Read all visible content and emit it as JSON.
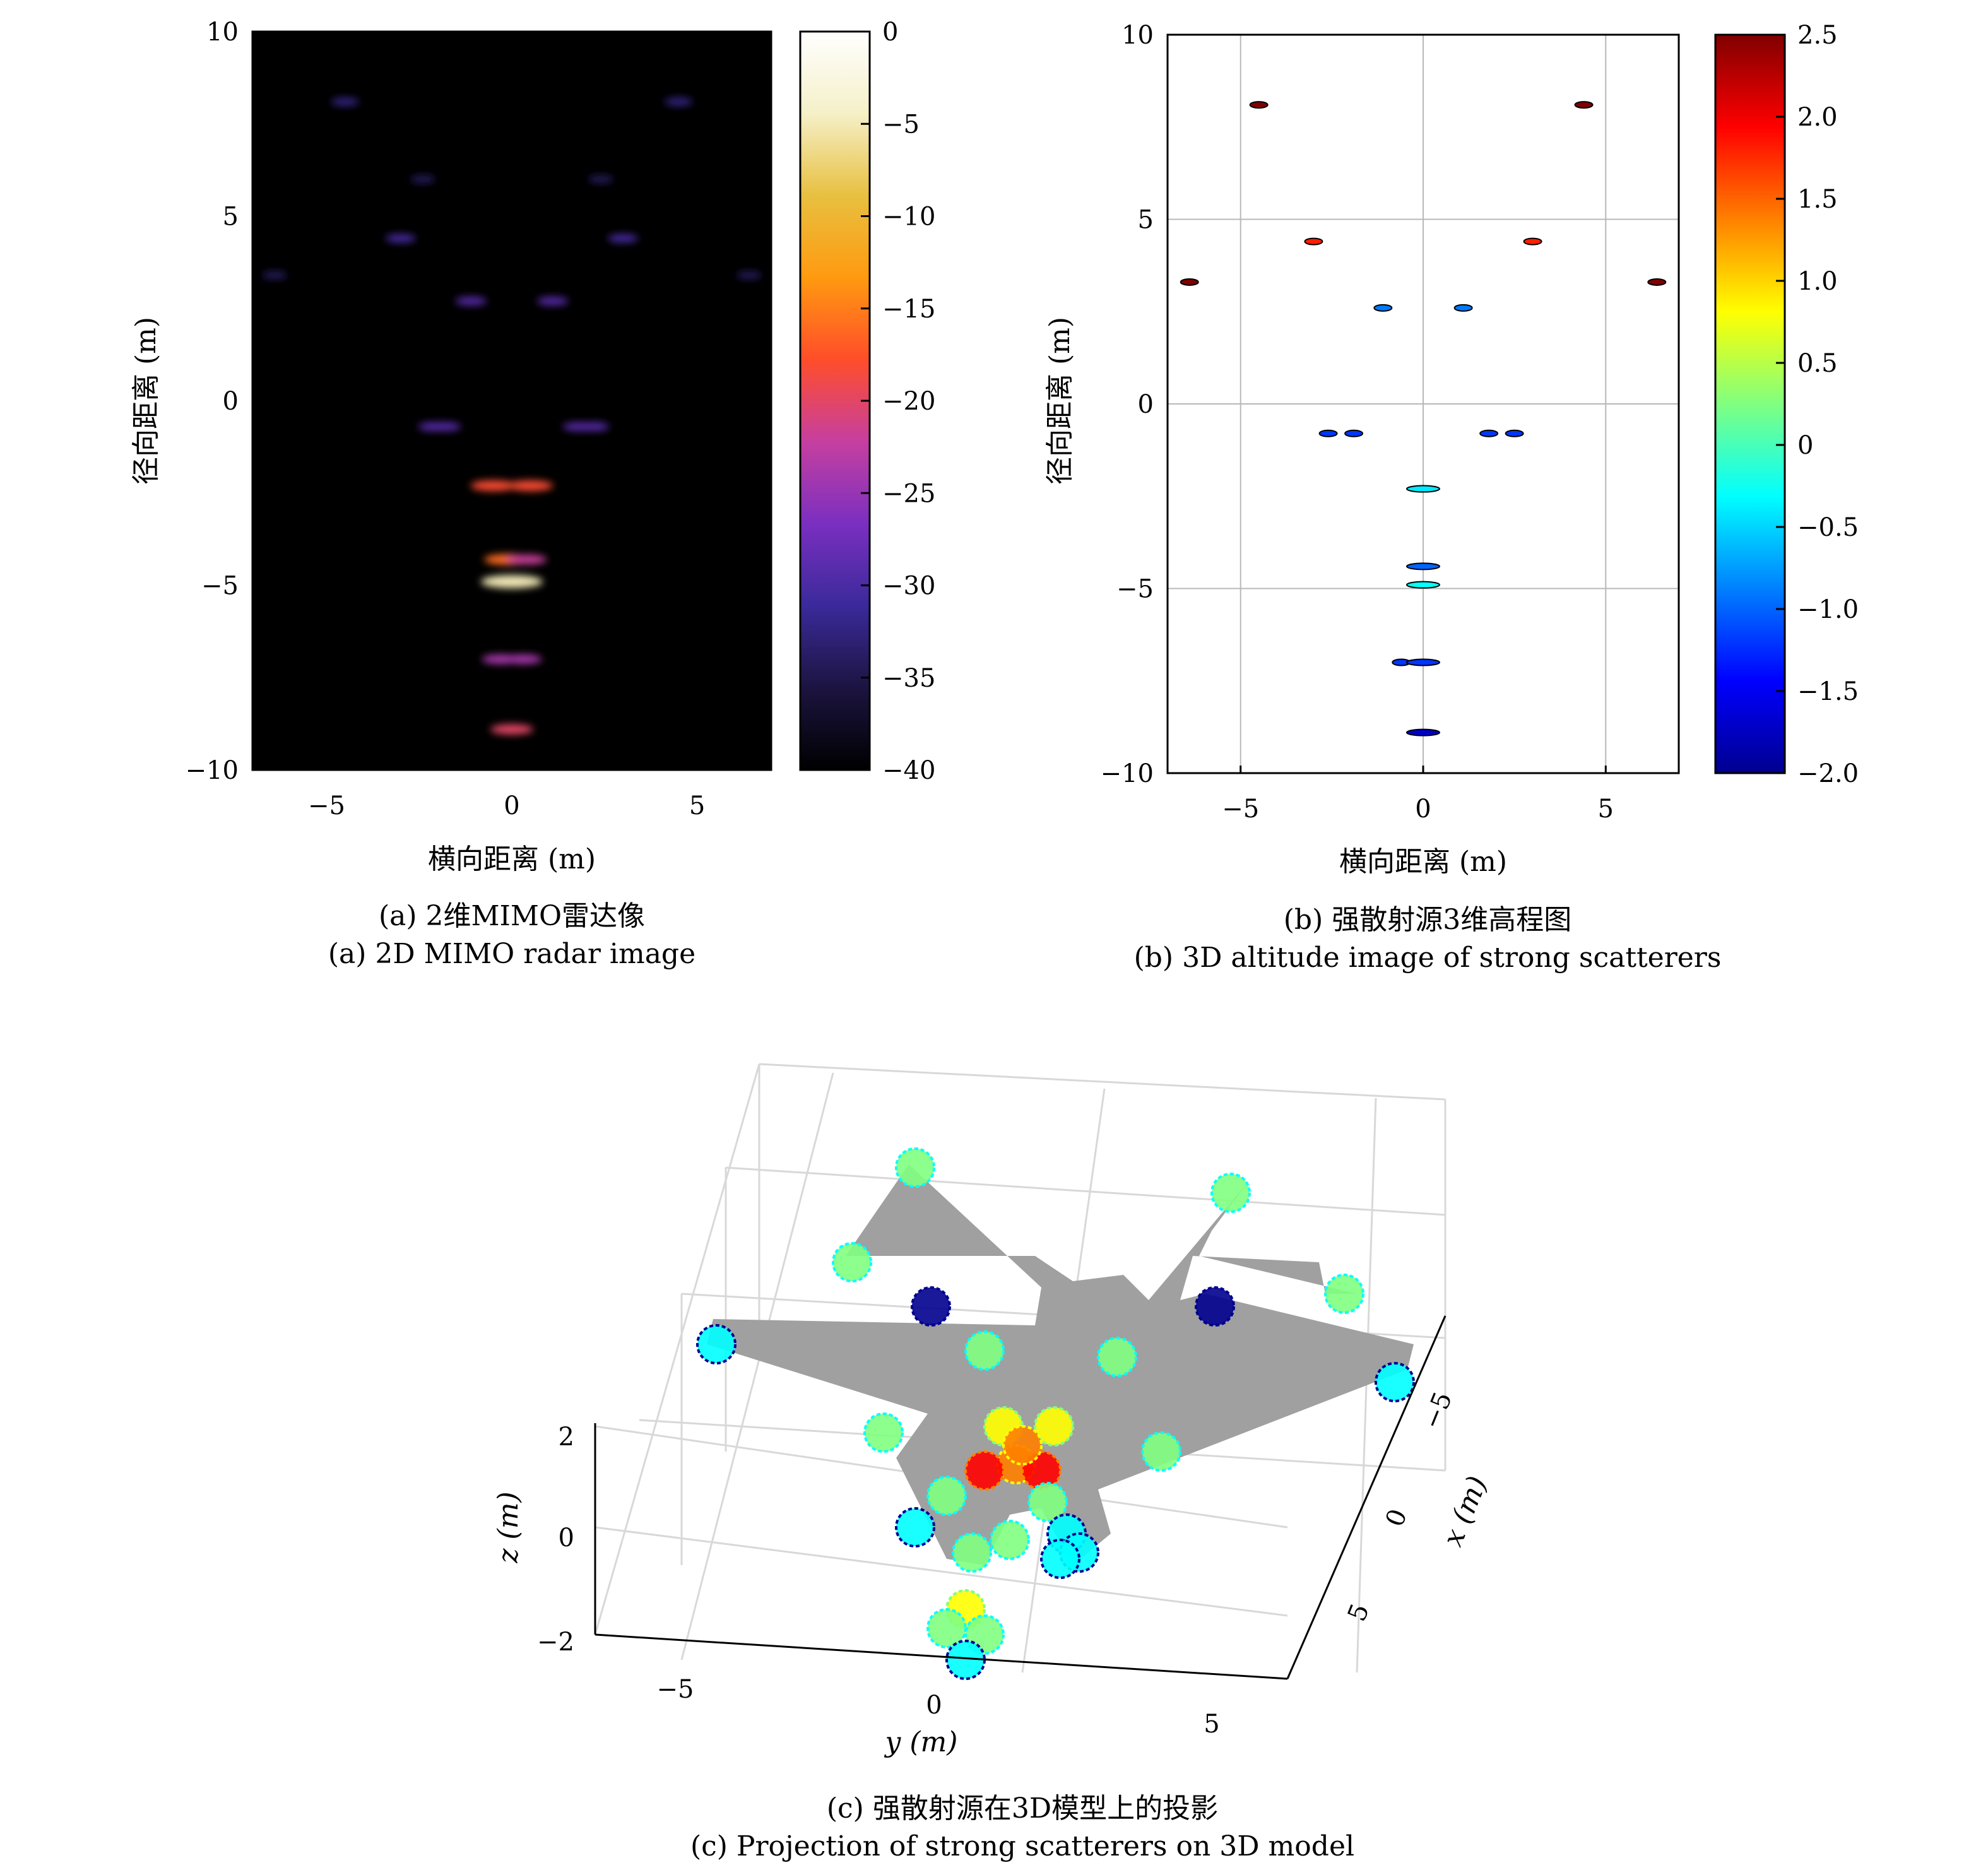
{
  "figure": {
    "panel_a": {
      "caption_cn": "(a) 2维MIMO雷达像",
      "caption_en": "(a) 2D MIMO radar image"
    },
    "panel_b": {
      "caption_cn": "(b) 强散射源3维高程图",
      "caption_en": "(b) 3D altitude image of strong scatterers"
    },
    "panel_c": {
      "caption_cn": "(c) 强散射源在3D模型上的投影",
      "caption_en": "(c) Projection of strong scatterers on 3D model"
    }
  },
  "chart_data": [
    {
      "type": "heatmap",
      "panel": "a",
      "xlabel": "横向距离 (m)",
      "ylabel": "径向距离 (m)",
      "xlim": [
        -7,
        7
      ],
      "ylim": [
        -10,
        10
      ],
      "xticks": [
        "−5",
        "0",
        "5"
      ],
      "xtick_values": [
        -5,
        0,
        5
      ],
      "yticks": [
        "10",
        "5",
        "0",
        "−5",
        "−10"
      ],
      "ytick_values": [
        10,
        5,
        0,
        -5,
        -10
      ],
      "colorbar": {
        "range": [
          -40,
          0
        ],
        "ticks": [
          "0",
          "−5",
          "−10",
          "−15",
          "−20",
          "−25",
          "−30",
          "−35",
          "−40"
        ],
        "tick_values": [
          0,
          -5,
          -10,
          -15,
          -20,
          -25,
          -30,
          -35,
          -40
        ],
        "colormap": [
          "#000000",
          "#1c1440",
          "#3a2a9a",
          "#7a2fc0",
          "#c63fa0",
          "#ff4d2a",
          "#ff9a10",
          "#e8c040",
          "#f5f0c8",
          "#ffffff"
        ]
      },
      "scatterers": [
        {
          "x": -4.5,
          "y": 8.1,
          "level": -32
        },
        {
          "x": 4.5,
          "y": 8.1,
          "level": -32
        },
        {
          "x": -2.4,
          "y": 6.0,
          "level": -34
        },
        {
          "x": 2.4,
          "y": 6.0,
          "level": -34
        },
        {
          "x": -3.0,
          "y": 4.4,
          "level": -30
        },
        {
          "x": 3.0,
          "y": 4.4,
          "level": -30
        },
        {
          "x": -6.4,
          "y": 3.4,
          "level": -34
        },
        {
          "x": 6.4,
          "y": 3.4,
          "level": -34
        },
        {
          "x": -1.1,
          "y": 2.7,
          "level": -29
        },
        {
          "x": 1.1,
          "y": 2.7,
          "level": -29
        },
        {
          "x": -2.1,
          "y": -0.7,
          "level": -29
        },
        {
          "x": -1.8,
          "y": -0.7,
          "level": -29
        },
        {
          "x": 1.8,
          "y": -0.7,
          "level": -29
        },
        {
          "x": 2.2,
          "y": -0.7,
          "level": -29
        },
        {
          "x": -0.5,
          "y": -2.3,
          "level": -18
        },
        {
          "x": 0.5,
          "y": -2.3,
          "level": -18
        },
        {
          "x": -0.1,
          "y": -4.3,
          "level": -16
        },
        {
          "x": 0.4,
          "y": -4.3,
          "level": -22
        },
        {
          "x": 0.0,
          "y": -4.9,
          "level": -5
        },
        {
          "x": -0.3,
          "y": -7.0,
          "level": -24
        },
        {
          "x": 0.3,
          "y": -7.0,
          "level": -24
        },
        {
          "x": 0.0,
          "y": -8.9,
          "level": -20
        }
      ]
    },
    {
      "type": "scatter",
      "panel": "b",
      "xlabel": "横向距离 (m)",
      "ylabel": "径向距离 (m)",
      "xlim": [
        -7,
        7
      ],
      "ylim": [
        -10,
        10
      ],
      "grid": true,
      "xticks": [
        "−5",
        "0",
        "5"
      ],
      "xtick_values": [
        -5,
        0,
        5
      ],
      "yticks": [
        "10",
        "5",
        "0",
        "−5",
        "−10"
      ],
      "ytick_values": [
        10,
        5,
        0,
        -5,
        -10
      ],
      "colorbar": {
        "range": [
          -2.0,
          2.5
        ],
        "ticks": [
          "2.5",
          "2.0",
          "1.5",
          "1.0",
          "0.5",
          "0",
          "−0.5",
          "−1.0",
          "−1.5",
          "−2.0"
        ],
        "tick_values": [
          2.5,
          2.0,
          1.5,
          1.0,
          0.5,
          0,
          -0.5,
          -1.0,
          -1.5,
          -2.0
        ],
        "colormap": [
          "#00008f",
          "#0000ff",
          "#0080ff",
          "#00ffff",
          "#80ff80",
          "#ffff00",
          "#ff8000",
          "#ff0000",
          "#800000"
        ]
      },
      "points": [
        {
          "x": -4.5,
          "y": 8.1,
          "z": 2.5
        },
        {
          "x": 4.4,
          "y": 8.1,
          "z": 2.5
        },
        {
          "x": -3.0,
          "y": 4.4,
          "z": 1.8
        },
        {
          "x": 3.0,
          "y": 4.4,
          "z": 1.8
        },
        {
          "x": -6.4,
          "y": 3.3,
          "z": 2.5
        },
        {
          "x": 6.4,
          "y": 3.3,
          "z": 2.5
        },
        {
          "x": -1.1,
          "y": 2.6,
          "z": -0.9
        },
        {
          "x": 1.1,
          "y": 2.6,
          "z": -0.9
        },
        {
          "x": -2.6,
          "y": -0.8,
          "z": -1.2
        },
        {
          "x": -1.9,
          "y": -0.8,
          "z": -1.2
        },
        {
          "x": 1.8,
          "y": -0.8,
          "z": -1.2
        },
        {
          "x": 2.5,
          "y": -0.8,
          "z": -1.2
        },
        {
          "x": 0.0,
          "y": -2.3,
          "z": -0.4
        },
        {
          "x": 0.0,
          "y": -4.4,
          "z": -1.0
        },
        {
          "x": 0.0,
          "y": -4.9,
          "z": -0.3
        },
        {
          "x": -0.6,
          "y": -7.0,
          "z": -1.2
        },
        {
          "x": 0.0,
          "y": -7.0,
          "z": -1.2
        },
        {
          "x": 0.0,
          "y": -8.9,
          "z": -1.7
        }
      ]
    },
    {
      "type": "scatter",
      "panel": "c",
      "xlabel": "y (m)",
      "ylabel": "z (m)",
      "depth_label": "x (m)",
      "y_ticks": [
        "−5",
        "0",
        "5"
      ],
      "y_tick_values": [
        -5,
        0,
        5
      ],
      "z_ticks": [
        "2",
        "0",
        "−2"
      ],
      "z_tick_values": [
        2,
        0,
        -2
      ],
      "x_ticks": [
        "−5",
        "0",
        "5"
      ],
      "x_tick_values": [
        -5,
        0,
        5
      ],
      "model_color": "#a0a0a0",
      "scatterer_colors": [
        "#00008f",
        "#00ffff",
        "#80ff80",
        "#ffff00",
        "#ff8000",
        "#ff0000"
      ]
    }
  ]
}
